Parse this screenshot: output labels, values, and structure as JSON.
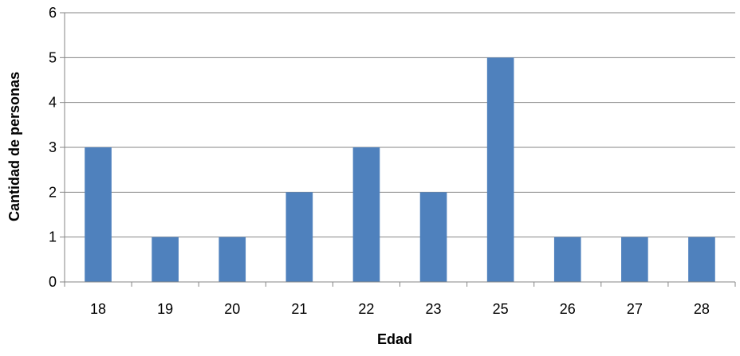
{
  "chart_data": {
    "type": "bar",
    "title": "",
    "xlabel": "Edad",
    "ylabel": "Cantidad de personas",
    "categories": [
      "18",
      "19",
      "20",
      "21",
      "22",
      "23",
      "25",
      "26",
      "27",
      "28"
    ],
    "values": [
      3,
      1,
      1,
      2,
      3,
      2,
      5,
      1,
      1,
      1
    ],
    "ylim": [
      0,
      6
    ],
    "yticks": [
      "0",
      "1",
      "2",
      "3",
      "4",
      "5",
      "6"
    ],
    "grid": true,
    "legend": "none",
    "bar_color": "#4F81BD",
    "grid_color": "#868686"
  }
}
